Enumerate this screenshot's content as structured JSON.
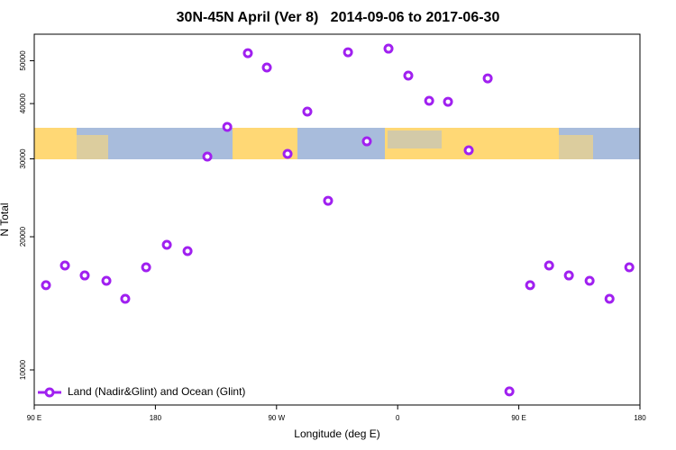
{
  "chart_data": {
    "type": "scatter",
    "title": "30N-45N April (Ver 8)   2014-09-06 to 2017-06-30",
    "x_label": "Longitude (deg E)",
    "y_label": "N Total",
    "log_y": true,
    "legend": "bottom-left",
    "xlim": [
      90,
      540
    ],
    "xticks": [
      {
        "value": 90,
        "label": "90 E"
      },
      180,
      {
        "value": 270,
        "label": "90 W"
      },
      {
        "value": 360,
        "label": "0"
      },
      {
        "value": 450,
        "label": "90 E"
      },
      {
        "value": 540,
        "label": "180"
      }
    ],
    "ylim": [
      8330,
      57400
    ],
    "yticks": [
      10000,
      20000,
      30000,
      40000,
      50000
    ],
    "series": [
      {
        "name": "Land (Nadir&Glint) and Ocean (Glint)",
        "color": "#a020f0",
        "x": [
          98.7,
          112.8,
          127.5,
          143.6,
          157.6,
          173.1,
          188.5,
          203.9,
          218.6,
          233.4,
          248.7,
          262.8,
          278.2,
          292.9,
          308.3,
          323.1,
          337.1,
          353.2,
          367.9,
          383.4,
          397.4,
          412.8,
          426.9,
          443.0,
          458.4,
          472.5,
          487.2,
          502.6,
          517.4,
          532.1
        ],
        "values": [
          15540,
          17220,
          16350,
          15900,
          14480,
          17060,
          19180,
          18560,
          30350,
          35420,
          52000,
          48260,
          30780,
          38370,
          24120,
          52250,
          32860,
          53240,
          46270,
          40580,
          40380,
          31360,
          45610,
          8940,
          15540,
          17220,
          16350,
          15900,
          14480,
          17060
        ]
      }
    ]
  }
}
